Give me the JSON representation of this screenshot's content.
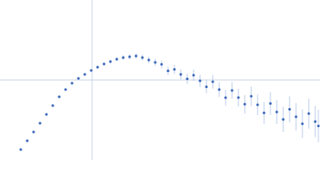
{
  "chart_data": {
    "type": "scatter",
    "color": "#3a67b8",
    "error_color": "#a9bfe3",
    "reference_color": "#c8d4e6",
    "xlim": [
      0,
      6.02
    ],
    "ylim": [
      0,
      2.208
    ],
    "reference_lines": {
      "x": 1.732,
      "y": 1.104
    },
    "x": [
      0.391,
      0.512,
      0.632,
      0.753,
      0.873,
      0.993,
      1.114,
      1.234,
      1.355,
      1.475,
      1.595,
      1.716,
      1.836,
      1.957,
      2.077,
      2.197,
      2.318,
      2.438,
      2.559,
      2.679,
      2.799,
      2.92,
      3.04,
      3.161,
      3.281,
      3.401,
      3.522,
      3.642,
      3.763,
      3.883,
      4.003,
      4.124,
      4.244,
      4.365,
      4.485,
      4.605,
      4.726,
      4.846,
      4.967,
      5.087,
      5.207,
      5.328,
      5.448,
      5.569,
      5.689,
      5.809,
      5.93,
      5.99
    ],
    "values": [
      0.144,
      0.265,
      0.386,
      0.508,
      0.629,
      0.751,
      0.872,
      0.972,
      1.06,
      1.126,
      1.181,
      1.236,
      1.281,
      1.325,
      1.358,
      1.391,
      1.413,
      1.424,
      1.435,
      1.413,
      1.38,
      1.347,
      1.32,
      1.23,
      1.25,
      1.181,
      1.12,
      1.17,
      1.093,
      1.01,
      1.08,
      0.972,
      0.86,
      0.96,
      0.861,
      0.77,
      0.88,
      0.762,
      0.65,
      0.78,
      0.662,
      0.56,
      0.7,
      0.596,
      0.5,
      0.64,
      0.53,
      0.47
    ],
    "errors": [
      0.005,
      0.005,
      0.005,
      0.006,
      0.007,
      0.008,
      0.009,
      0.01,
      0.011,
      0.013,
      0.015,
      0.017,
      0.019,
      0.022,
      0.025,
      0.028,
      0.031,
      0.034,
      0.037,
      0.041,
      0.045,
      0.049,
      0.053,
      0.058,
      0.063,
      0.068,
      0.073,
      0.078,
      0.084,
      0.089,
      0.095,
      0.101,
      0.108,
      0.114,
      0.121,
      0.128,
      0.135,
      0.142,
      0.15,
      0.157,
      0.165,
      0.173,
      0.181,
      0.19,
      0.198,
      0.207,
      0.216,
      0.225
    ]
  }
}
